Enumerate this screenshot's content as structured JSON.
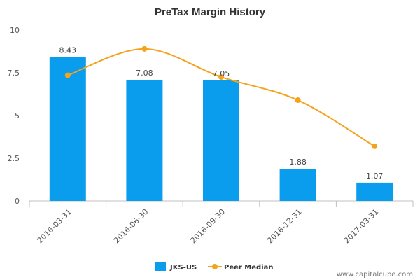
{
  "source_text": "www.capitalcube.com",
  "chart_data": {
    "type": "bar",
    "title": "PreTax Margin History",
    "xlabel": "",
    "ylabel": "",
    "ylim": [
      0,
      10
    ],
    "yticks": [
      0,
      2.5,
      5,
      7.5,
      10
    ],
    "ytick_labels": [
      "0",
      "2.5",
      "5",
      "7.5",
      "10"
    ],
    "categories": [
      "2016-03-31",
      "2016-06-30",
      "2016-09-30",
      "2016-12-31",
      "2017-03-31"
    ],
    "series": [
      {
        "name": "JKS-US",
        "type": "bar",
        "color": "#0a9ced",
        "values": [
          8.43,
          7.08,
          7.05,
          1.88,
          1.07
        ],
        "labels": [
          "8.43",
          "7.08",
          "7.05",
          "1.88",
          "1.07"
        ]
      },
      {
        "name": "Peer Median",
        "type": "line",
        "color": "#f5a21c",
        "values": [
          7.35,
          8.9,
          7.25,
          5.9,
          3.2
        ]
      }
    ],
    "legend_position": "bottom-center",
    "grid": false
  }
}
